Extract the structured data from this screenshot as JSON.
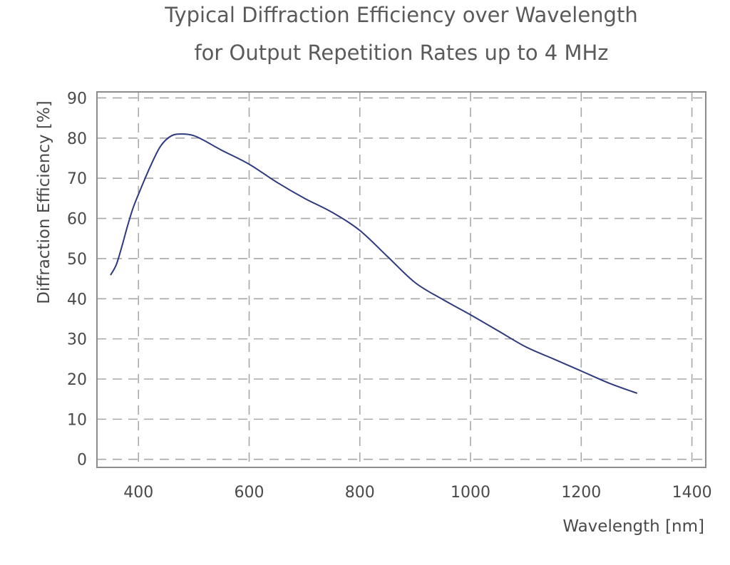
{
  "chart_data": {
    "type": "line",
    "title": "Typical Diffraction Efficiency over Wavelength",
    "subtitle": "for Output Repetition Rates up to 4 MHz",
    "xlabel": "Wavelength [nm]",
    "ylabel": "Diffraction Efficiency [%]",
    "xlim": [
      325,
      1425
    ],
    "ylim": [
      -2,
      91.5
    ],
    "x_ticks": [
      400,
      600,
      800,
      1000,
      1200,
      1400
    ],
    "y_ticks": [
      0,
      10,
      20,
      30,
      40,
      50,
      60,
      70,
      80,
      90
    ],
    "x_tick_labels": [
      "400",
      "600",
      "800",
      "1000",
      "1200",
      "1400"
    ],
    "y_tick_labels": [
      "0",
      "10",
      "20",
      "30",
      "40",
      "50",
      "60",
      "70",
      "80",
      "90"
    ],
    "grid": true,
    "grid_style": "dashed",
    "colors": {
      "line": "#2e3a80",
      "grid": "#a8a8a8",
      "frame": "#8c8c8c",
      "text": "#4a4a4a"
    },
    "series": [
      {
        "x": [
          350,
          360,
          370,
          380,
          390,
          400,
          420,
          440,
          460,
          480,
          500,
          520,
          550,
          600,
          650,
          700,
          750,
          800,
          850,
          900,
          950,
          1000,
          1050,
          1100,
          1150,
          1200,
          1250,
          1300
        ],
        "y": [
          46,
          48.5,
          53,
          58,
          62.5,
          66,
          72.5,
          78,
          80.6,
          81.0,
          80.6,
          79.3,
          77,
          73.5,
          69,
          65,
          61.5,
          57,
          50.5,
          44,
          39.8,
          36,
          32,
          28,
          25,
          22,
          19,
          16.5
        ]
      }
    ]
  }
}
